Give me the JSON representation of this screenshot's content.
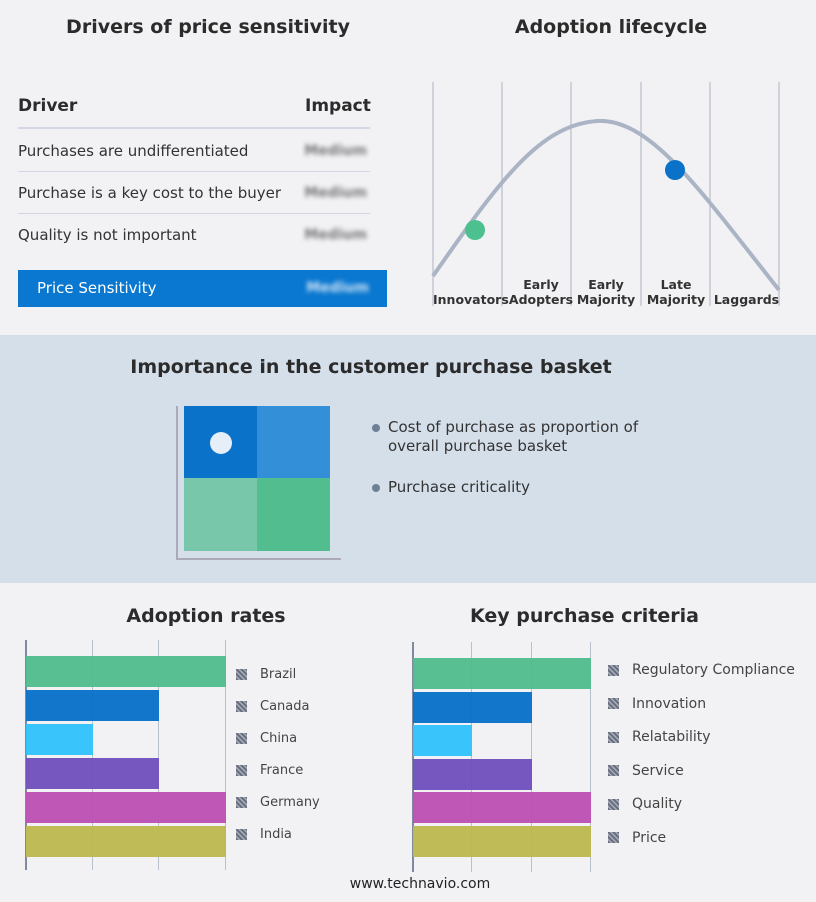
{
  "drivers": {
    "title": "Drivers of price sensitivity",
    "col_driver": "Driver",
    "col_impact": "Impact",
    "rows": [
      {
        "driver": "Purchases are undifferentiated",
        "impact": "Medium"
      },
      {
        "driver": "Purchase is a key cost to the buyer",
        "impact": "Medium"
      },
      {
        "driver": "Quality is not important",
        "impact": "Medium"
      }
    ],
    "summary": {
      "label": "Price Sensitivity",
      "impact": "Medium"
    }
  },
  "lifecycle": {
    "title": "Adoption lifecycle",
    "stages": [
      "Innovators",
      "Early Adopters",
      "Early Majority",
      "Late Majority",
      "Laggards"
    ],
    "markers": [
      {
        "stage": "Innovators",
        "color": "#4cc08f"
      },
      {
        "stage": "Late Majority",
        "color": "#0a72c8"
      }
    ]
  },
  "basket": {
    "title": "Importance in the customer purchase basket",
    "legend": [
      "Cost of purchase as proportion of overall purchase basket",
      "Purchase criticality"
    ],
    "highlight": "high cost / high criticality"
  },
  "chart_data": [
    {
      "type": "bar",
      "title": "Adoption rates",
      "categories": [
        "Brazil",
        "Canada",
        "China",
        "France",
        "Germany",
        "India"
      ],
      "values": [
        3,
        2,
        1,
        2,
        3,
        3
      ],
      "xlim": [
        0,
        3
      ],
      "grid": true,
      "legend": "right",
      "colors": [
        "#52bd8e",
        "#0a72c8",
        "#33c3fc",
        "#7152bd",
        "#bd52b5",
        "#bdb952"
      ]
    },
    {
      "type": "bar",
      "title": "Key purchase criteria",
      "categories": [
        "Regulatory Compliance",
        "Innovation",
        "Relatability",
        "Service",
        "Quality",
        "Price"
      ],
      "values": [
        3,
        2,
        1,
        2,
        3,
        3
      ],
      "xlim": [
        0,
        3
      ],
      "grid": true,
      "legend": "right",
      "colors": [
        "#52bd8e",
        "#0a72c8",
        "#33c3fc",
        "#7152bd",
        "#bd52b5",
        "#bdb952"
      ]
    }
  ],
  "footer": "www.technavio.com"
}
